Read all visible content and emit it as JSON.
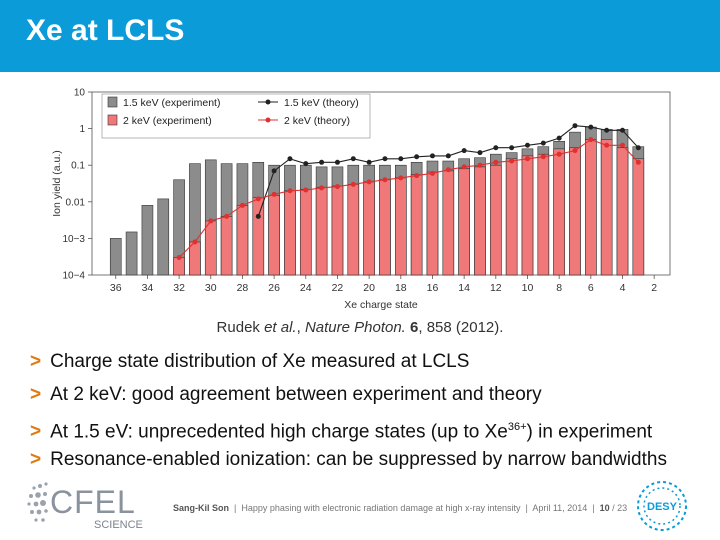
{
  "slide": {
    "title": "Xe at LCLS",
    "citation": {
      "authors": "Rudek",
      "etal": "et al.",
      "journal": "Nature Photon.",
      "volume": "6",
      "pages": ", 858 (2012)."
    },
    "bullets": [
      {
        "text": "Charge state distribution of Xe measured at LCLS"
      },
      {
        "text": "At 2 keV: good agreement between experiment and theory"
      },
      {
        "text": "At 1.5 eV: unprecedented high charge states (up to Xe",
        "sup": "36+",
        "tail": ") in experiment"
      },
      {
        "text": "Resonance-enabled ionization: can be suppressed by narrow bandwidths"
      }
    ],
    "bullet_marker": ">",
    "footer": {
      "author": "Sang-Kil Son",
      "talk": "Happy phasing with electronic radiation damage at high x-ray intensity",
      "date": "April 11, 2014",
      "page": "10",
      "total": "23"
    },
    "logos": {
      "left": "CFEL",
      "left_sub": "SCIENCE",
      "right": "DESY"
    },
    "colors": {
      "header": "#0a9bd8",
      "accent": "#e07a10"
    }
  },
  "chart_data": {
    "type": "bar",
    "xlabel": "Xe charge state",
    "ylabel": "Ion yield (a.u.)",
    "y_scale": "log",
    "ylim": [
      0.0001,
      10
    ],
    "yticks": [
      10,
      1,
      0.1,
      0.01,
      0.001,
      0.0001
    ],
    "ytick_labels": [
      "10",
      "1",
      "0.1",
      "0.01",
      "10−3",
      "10−4"
    ],
    "xlim": [
      37.5,
      1
    ],
    "xticks": [
      36,
      34,
      32,
      30,
      28,
      26,
      24,
      22,
      20,
      18,
      16,
      14,
      12,
      10,
      8,
      6,
      4,
      2
    ],
    "legend_position": "top-left",
    "charge_states": [
      36,
      35,
      34,
      33,
      32,
      31,
      30,
      29,
      28,
      27,
      26,
      25,
      24,
      23,
      22,
      21,
      20,
      19,
      18,
      17,
      16,
      15,
      14,
      13,
      12,
      11,
      10,
      9,
      8,
      7,
      6,
      5,
      4,
      3
    ],
    "series": [
      {
        "name": "1.5 keV (experiment)",
        "kind": "bar",
        "color": "#8c8c8c",
        "values": [
          0.001,
          0.0015,
          0.008,
          0.012,
          0.04,
          0.11,
          0.14,
          0.11,
          0.11,
          0.12,
          0.1,
          0.1,
          0.1,
          0.09,
          0.09,
          0.1,
          0.1,
          0.1,
          0.1,
          0.12,
          0.13,
          0.13,
          0.15,
          0.16,
          0.2,
          0.22,
          0.28,
          0.32,
          0.45,
          0.8,
          1.1,
          0.95,
          0.95,
          0.32
        ]
      },
      {
        "name": "2 keV (experiment)",
        "kind": "bar",
        "color": "#f07878",
        "values": [
          null,
          null,
          null,
          null,
          0.0003,
          0.0008,
          0.003,
          0.004,
          0.008,
          0.013,
          0.015,
          0.02,
          0.022,
          0.025,
          0.027,
          0.03,
          0.035,
          0.04,
          0.045,
          0.055,
          0.065,
          0.07,
          0.08,
          0.09,
          0.1,
          0.15,
          0.18,
          0.2,
          0.28,
          0.3,
          0.5,
          0.5,
          0.3,
          0.15
        ]
      },
      {
        "name": "1.5 keV (theory)",
        "kind": "line",
        "color": "#222222",
        "values": [
          null,
          null,
          null,
          null,
          null,
          null,
          null,
          null,
          null,
          0.004,
          0.07,
          0.15,
          0.11,
          0.12,
          0.12,
          0.15,
          0.12,
          0.15,
          0.15,
          0.17,
          0.18,
          0.18,
          0.25,
          0.22,
          0.3,
          0.3,
          0.35,
          0.4,
          0.55,
          1.2,
          1.1,
          0.9,
          0.9,
          0.3
        ]
      },
      {
        "name": "2 keV (theory)",
        "kind": "line",
        "color": "#e03030",
        "values": [
          null,
          null,
          null,
          null,
          0.0003,
          0.0008,
          0.003,
          0.004,
          0.008,
          0.012,
          0.016,
          0.02,
          0.021,
          0.024,
          0.026,
          0.03,
          0.035,
          0.04,
          0.045,
          0.052,
          0.06,
          0.075,
          0.09,
          0.1,
          0.12,
          0.13,
          0.15,
          0.17,
          0.2,
          0.25,
          0.5,
          0.35,
          0.35,
          0.12
        ]
      }
    ]
  }
}
